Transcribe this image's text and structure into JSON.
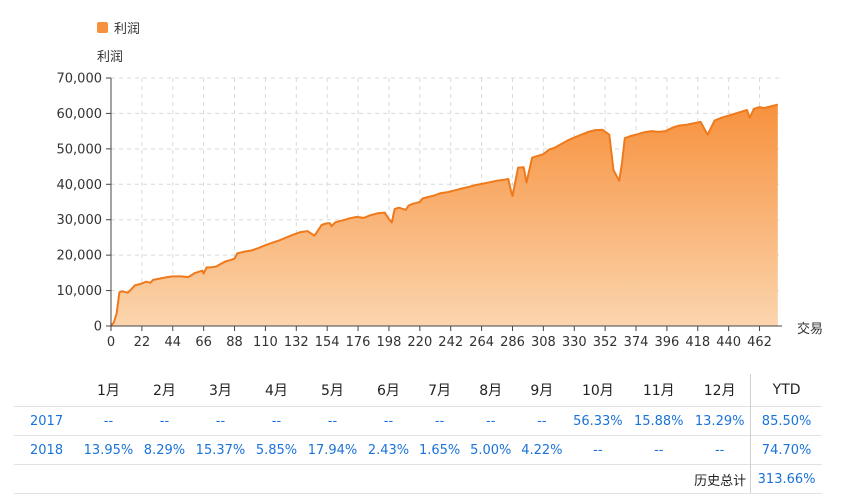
{
  "legend": {
    "label": "利润",
    "color": "#f7913d"
  },
  "chart_data": {
    "type": "area",
    "ylabel": "利润",
    "xlabel": "交易",
    "ylim": [
      0,
      70000
    ],
    "xlim": [
      0,
      478
    ],
    "y_ticks": [
      0,
      10000,
      20000,
      30000,
      40000,
      50000,
      60000,
      70000
    ],
    "y_tick_labels": [
      "0",
      "10,000",
      "20,000",
      "30,000",
      "40,000",
      "50,000",
      "60,000",
      "70,000"
    ],
    "x_ticks": [
      0,
      22,
      44,
      66,
      88,
      110,
      132,
      154,
      176,
      198,
      220,
      242,
      264,
      286,
      308,
      330,
      352,
      374,
      396,
      418,
      440,
      462
    ],
    "grid": true,
    "series": [
      {
        "name": "利润",
        "color": "#f7913d",
        "x": [
          0,
          2,
          4,
          6,
          8,
          12,
          14,
          17,
          22,
          25,
          28,
          30,
          35,
          40,
          44,
          50,
          55,
          58,
          60,
          65,
          66,
          68,
          72,
          75,
          78,
          82,
          85,
          88,
          90,
          95,
          100,
          105,
          110,
          115,
          120,
          125,
          130,
          135,
          140,
          145,
          150,
          152,
          154,
          156,
          157,
          160,
          165,
          170,
          175,
          180,
          185,
          190,
          195,
          198,
          200,
          202,
          205,
          210,
          212,
          215,
          220,
          222,
          225,
          230,
          235,
          240,
          245,
          250,
          255,
          260,
          265,
          270,
          275,
          280,
          283,
          285,
          286,
          290,
          294,
          296,
          300,
          304,
          308,
          312,
          316,
          320,
          325,
          330,
          335,
          340,
          345,
          350,
          355,
          358,
          362,
          364,
          366,
          368,
          370,
          372,
          375,
          380,
          385,
          390,
          395,
          400,
          405,
          410,
          412,
          415,
          420,
          425,
          430,
          435,
          440,
          445,
          450,
          453,
          455,
          458,
          462,
          465,
          470,
          475
        ],
        "y": [
          0,
          1000,
          3500,
          9500,
          9800,
          9400,
          10200,
          11500,
          12000,
          12500,
          12200,
          13000,
          13400,
          13800,
          14000,
          14000,
          13800,
          14500,
          15000,
          15600,
          14800,
          16500,
          16600,
          16800,
          17500,
          18300,
          18600,
          19000,
          20500,
          21000,
          21300,
          22000,
          22800,
          23500,
          24200,
          25000,
          25800,
          26500,
          26800,
          25500,
          28500,
          28800,
          29000,
          29000,
          28200,
          29300,
          29800,
          30400,
          30800,
          30500,
          31300,
          31800,
          32000,
          30200,
          29200,
          33000,
          33400,
          32800,
          34000,
          34500,
          35000,
          36000,
          36300,
          36800,
          37500,
          37800,
          38300,
          38800,
          39300,
          39800,
          40200,
          40600,
          41000,
          41300,
          41500,
          38000,
          36700,
          44700,
          44800,
          40500,
          47500,
          48000,
          48500,
          49800,
          50300,
          51200,
          52300,
          53200,
          54000,
          54800,
          55300,
          55400,
          54000,
          44000,
          41000,
          46000,
          53000,
          53300,
          53600,
          53800,
          54100,
          54700,
          55000,
          54800,
          55000,
          56000,
          56600,
          56800,
          57000,
          57200,
          57600,
          54000,
          58000,
          58800,
          59400,
          60000,
          60600,
          61000,
          58800,
          61300,
          61800,
          61500,
          62000,
          62500
        ]
      }
    ]
  },
  "table": {
    "headers": [
      "1月",
      "2月",
      "3月",
      "4月",
      "5月",
      "6月",
      "7月",
      "8月",
      "9月",
      "10月",
      "11月",
      "12月",
      "YTD"
    ],
    "rows": [
      {
        "year": "2017",
        "values": [
          "--",
          "--",
          "--",
          "--",
          "--",
          "--",
          "--",
          "--",
          "--",
          "56.33%",
          "15.88%",
          "13.29%"
        ],
        "ytd": "85.50%"
      },
      {
        "year": "2018",
        "values": [
          "13.95%",
          "8.29%",
          "15.37%",
          "5.85%",
          "17.94%",
          "2.43%",
          "1.65%",
          "5.00%",
          "4.22%",
          "--",
          "--",
          "--"
        ],
        "ytd": "74.70%"
      }
    ],
    "total_label": "历史总计",
    "total_value": "313.66%"
  }
}
